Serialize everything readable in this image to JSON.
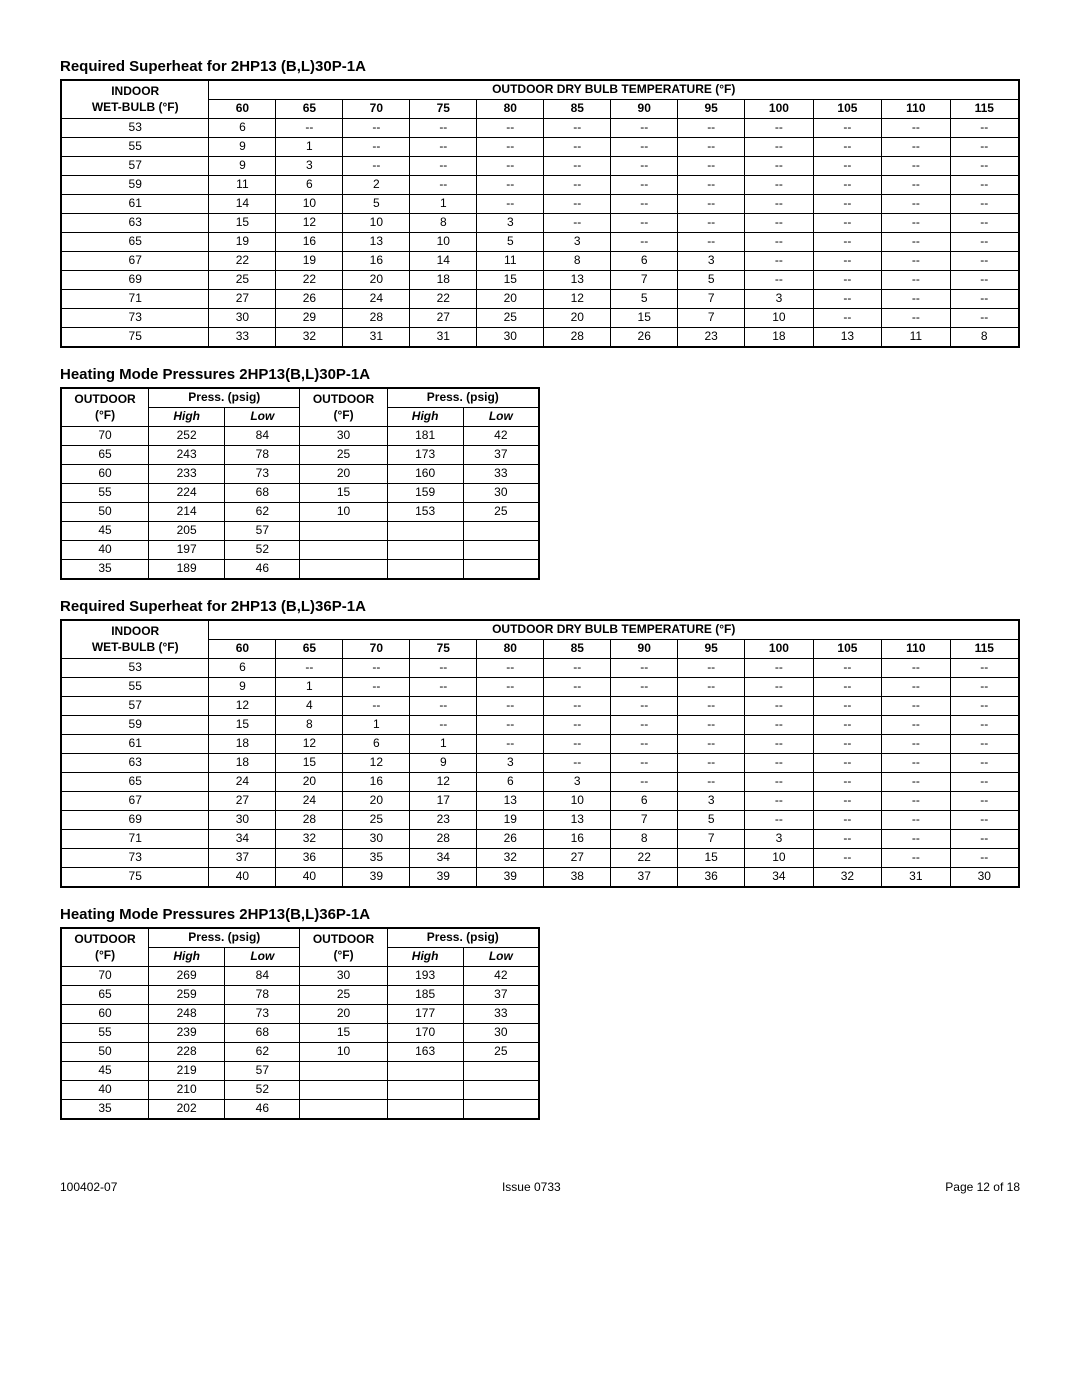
{
  "footer": {
    "left": "100402-07",
    "center": "Issue  0733",
    "right": "Page  12  of  18"
  },
  "labels": {
    "indoor_wetbulb_line1": "INDOOR",
    "indoor_wetbulb_line2": "WET-BULB (°F)",
    "outdoor_header": "OUTDOOR DRY BULB TEMPERATURE (°F)",
    "outdoor_f_line1": "OUTDOOR",
    "outdoor_f_line2": "(°F)",
    "press_psig": "Press. (psig)",
    "high": "High",
    "low": "Low"
  },
  "superheat1": {
    "title": "Required Superheat for 2HP13 (B,L)30P-1A",
    "temps": [
      "60",
      "65",
      "70",
      "75",
      "80",
      "85",
      "90",
      "95",
      "100",
      "105",
      "110",
      "115"
    ],
    "rows": [
      {
        "wb": "53",
        "v": [
          "6",
          "--",
          "--",
          "--",
          "--",
          "--",
          "--",
          "--",
          "--",
          "--",
          "--",
          "--"
        ]
      },
      {
        "wb": "55",
        "v": [
          "9",
          "1",
          "--",
          "--",
          "--",
          "--",
          "--",
          "--",
          "--",
          "--",
          "--",
          "--"
        ]
      },
      {
        "wb": "57",
        "v": [
          "9",
          "3",
          "--",
          "--",
          "--",
          "--",
          "--",
          "--",
          "--",
          "--",
          "--",
          "--"
        ]
      },
      {
        "wb": "59",
        "v": [
          "11",
          "6",
          "2",
          "--",
          "--",
          "--",
          "--",
          "--",
          "--",
          "--",
          "--",
          "--"
        ]
      },
      {
        "wb": "61",
        "v": [
          "14",
          "10",
          "5",
          "1",
          "--",
          "--",
          "--",
          "--",
          "--",
          "--",
          "--",
          "--"
        ]
      },
      {
        "wb": "63",
        "v": [
          "15",
          "12",
          "10",
          "8",
          "3",
          "--",
          "--",
          "--",
          "--",
          "--",
          "--",
          "--"
        ]
      },
      {
        "wb": "65",
        "v": [
          "19",
          "16",
          "13",
          "10",
          "5",
          "3",
          "--",
          "--",
          "--",
          "--",
          "--",
          "--"
        ]
      },
      {
        "wb": "67",
        "v": [
          "22",
          "19",
          "16",
          "14",
          "11",
          "8",
          "6",
          "3",
          "--",
          "--",
          "--",
          "--"
        ]
      },
      {
        "wb": "69",
        "v": [
          "25",
          "22",
          "20",
          "18",
          "15",
          "13",
          "7",
          "5",
          "--",
          "--",
          "--",
          "--"
        ]
      },
      {
        "wb": "71",
        "v": [
          "27",
          "26",
          "24",
          "22",
          "20",
          "12",
          "5",
          "7",
          "3",
          "--",
          "--",
          "--"
        ]
      },
      {
        "wb": "73",
        "v": [
          "30",
          "29",
          "28",
          "27",
          "25",
          "20",
          "15",
          "7",
          "10",
          "--",
          "--",
          "--"
        ]
      },
      {
        "wb": "75",
        "v": [
          "33",
          "32",
          "31",
          "31",
          "30",
          "28",
          "26",
          "23",
          "18",
          "13",
          "11",
          "8"
        ]
      }
    ]
  },
  "heating1": {
    "title": "Heating Mode Pressures 2HP13(B,L)30P-1A",
    "rows": [
      {
        "of1": "70",
        "h1": "252",
        "l1": "84",
        "of2": "30",
        "h2": "181",
        "l2": "42"
      },
      {
        "of1": "65",
        "h1": "243",
        "l1": "78",
        "of2": "25",
        "h2": "173",
        "l2": "37"
      },
      {
        "of1": "60",
        "h1": "233",
        "l1": "73",
        "of2": "20",
        "h2": "160",
        "l2": "33"
      },
      {
        "of1": "55",
        "h1": "224",
        "l1": "68",
        "of2": "15",
        "h2": "159",
        "l2": "30"
      },
      {
        "of1": "50",
        "h1": "214",
        "l1": "62",
        "of2": "10",
        "h2": "153",
        "l2": "25"
      },
      {
        "of1": "45",
        "h1": "205",
        "l1": "57",
        "of2": "",
        "h2": "",
        "l2": ""
      },
      {
        "of1": "40",
        "h1": "197",
        "l1": "52",
        "of2": "",
        "h2": "",
        "l2": ""
      },
      {
        "of1": "35",
        "h1": "189",
        "l1": "46",
        "of2": "",
        "h2": "",
        "l2": ""
      }
    ]
  },
  "superheat2": {
    "title": "Required Superheat for 2HP13 (B,L)36P-1A",
    "temps": [
      "60",
      "65",
      "70",
      "75",
      "80",
      "85",
      "90",
      "95",
      "100",
      "105",
      "110",
      "115"
    ],
    "rows": [
      {
        "wb": "53",
        "v": [
          "6",
          "--",
          "--",
          "--",
          "--",
          "--",
          "--",
          "--",
          "--",
          "--",
          "--",
          "--"
        ]
      },
      {
        "wb": "55",
        "v": [
          "9",
          "1",
          "--",
          "--",
          "--",
          "--",
          "--",
          "--",
          "--",
          "--",
          "--",
          "--"
        ]
      },
      {
        "wb": "57",
        "v": [
          "12",
          "4",
          "--",
          "--",
          "--",
          "--",
          "--",
          "--",
          "--",
          "--",
          "--",
          "--"
        ]
      },
      {
        "wb": "59",
        "v": [
          "15",
          "8",
          "1",
          "--",
          "--",
          "--",
          "--",
          "--",
          "--",
          "--",
          "--",
          "--"
        ]
      },
      {
        "wb": "61",
        "v": [
          "18",
          "12",
          "6",
          "1",
          "--",
          "--",
          "--",
          "--",
          "--",
          "--",
          "--",
          "--"
        ]
      },
      {
        "wb": "63",
        "v": [
          "18",
          "15",
          "12",
          "9",
          "3",
          "--",
          "--",
          "--",
          "--",
          "--",
          "--",
          "--"
        ]
      },
      {
        "wb": "65",
        "v": [
          "24",
          "20",
          "16",
          "12",
          "6",
          "3",
          "--",
          "--",
          "--",
          "--",
          "--",
          "--"
        ]
      },
      {
        "wb": "67",
        "v": [
          "27",
          "24",
          "20",
          "17",
          "13",
          "10",
          "6",
          "3",
          "--",
          "--",
          "--",
          "--"
        ]
      },
      {
        "wb": "69",
        "v": [
          "30",
          "28",
          "25",
          "23",
          "19",
          "13",
          "7",
          "5",
          "--",
          "--",
          "--",
          "--"
        ]
      },
      {
        "wb": "71",
        "v": [
          "34",
          "32",
          "30",
          "28",
          "26",
          "16",
          "8",
          "7",
          "3",
          "--",
          "--",
          "--"
        ]
      },
      {
        "wb": "73",
        "v": [
          "37",
          "36",
          "35",
          "34",
          "32",
          "27",
          "22",
          "15",
          "10",
          "--",
          "--",
          "--"
        ]
      },
      {
        "wb": "75",
        "v": [
          "40",
          "40",
          "39",
          "39",
          "39",
          "38",
          "37",
          "36",
          "34",
          "32",
          "31",
          "30"
        ]
      }
    ]
  },
  "heating2": {
    "title": "Heating Mode Pressures 2HP13(B,L)36P-1A",
    "rows": [
      {
        "of1": "70",
        "h1": "269",
        "l1": "84",
        "of2": "30",
        "h2": "193",
        "l2": "42"
      },
      {
        "of1": "65",
        "h1": "259",
        "l1": "78",
        "of2": "25",
        "h2": "185",
        "l2": "37"
      },
      {
        "of1": "60",
        "h1": "248",
        "l1": "73",
        "of2": "20",
        "h2": "177",
        "l2": "33"
      },
      {
        "of1": "55",
        "h1": "239",
        "l1": "68",
        "of2": "15",
        "h2": "170",
        "l2": "30"
      },
      {
        "of1": "50",
        "h1": "228",
        "l1": "62",
        "of2": "10",
        "h2": "163",
        "l2": "25"
      },
      {
        "of1": "45",
        "h1": "219",
        "l1": "57",
        "of2": "",
        "h2": "",
        "l2": ""
      },
      {
        "of1": "40",
        "h1": "210",
        "l1": "52",
        "of2": "",
        "h2": "",
        "l2": ""
      },
      {
        "of1": "35",
        "h1": "202",
        "l1": "46",
        "of2": "",
        "h2": "",
        "l2": ""
      }
    ]
  }
}
